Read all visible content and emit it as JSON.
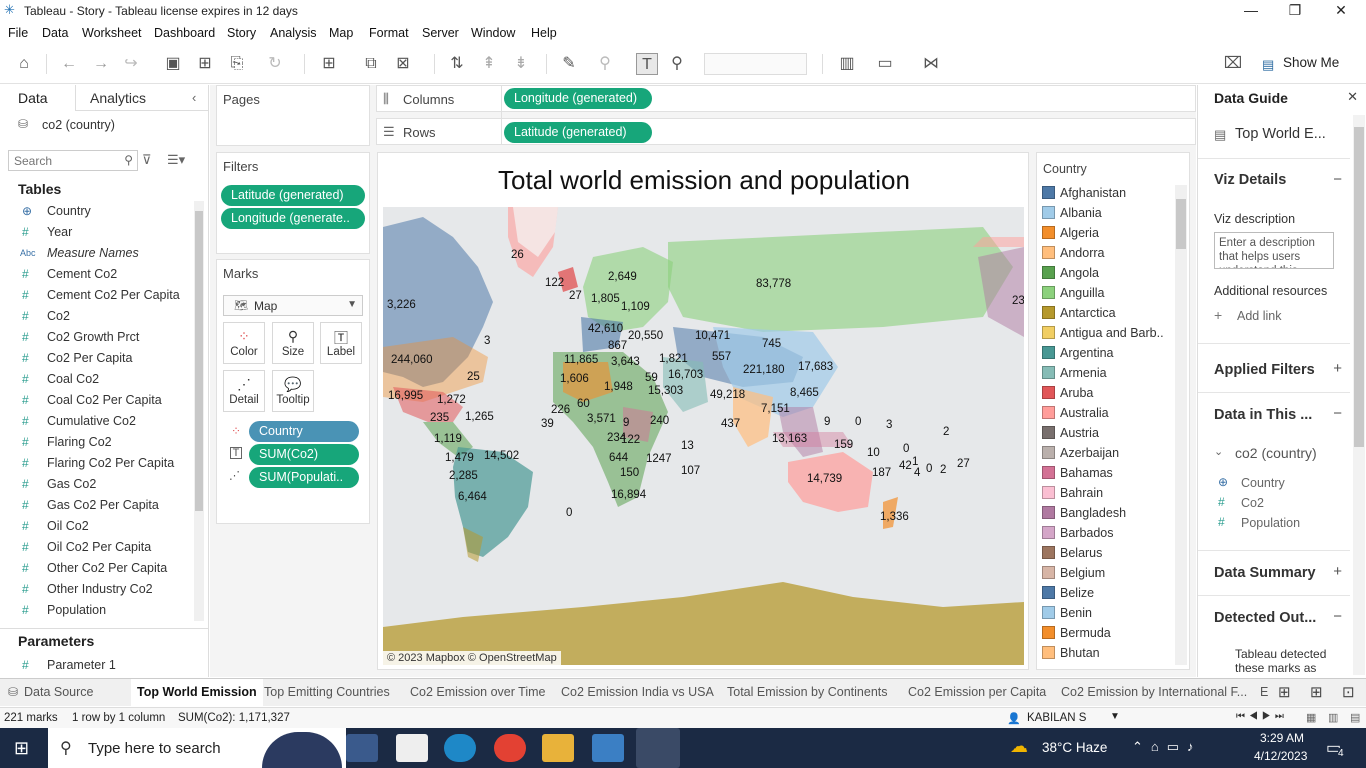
{
  "window": {
    "title": "Tableau - Story - Tableau license expires in 12 days"
  },
  "menu": [
    "File",
    "Data",
    "Worksheet",
    "Dashboard",
    "Story",
    "Analysis",
    "Map",
    "Format",
    "Server",
    "Window",
    "Help"
  ],
  "toolbar": {
    "show_me": "Show Me"
  },
  "left_panel": {
    "tab_data": "Data",
    "tab_analytics": "Analytics",
    "datasource": "co2 (country)",
    "search_placeholder": "Search",
    "tables_heading": "Tables",
    "fields": [
      {
        "icon": "⊕",
        "label": "Country"
      },
      {
        "icon": "#",
        "label": "Year"
      },
      {
        "icon": "Abc",
        "label": "Measure Names"
      },
      {
        "icon": "#",
        "label": "Cement Co2"
      },
      {
        "icon": "#",
        "label": "Cement Co2 Per Capita"
      },
      {
        "icon": "#",
        "label": "Co2"
      },
      {
        "icon": "#",
        "label": "Co2 Growth Prct"
      },
      {
        "icon": "#",
        "label": "Co2 Per Capita"
      },
      {
        "icon": "#",
        "label": "Coal Co2"
      },
      {
        "icon": "#",
        "label": "Coal Co2 Per Capita"
      },
      {
        "icon": "#",
        "label": "Cumulative Co2"
      },
      {
        "icon": "#",
        "label": "Flaring Co2"
      },
      {
        "icon": "#",
        "label": "Flaring Co2 Per Capita"
      },
      {
        "icon": "#",
        "label": "Gas Co2"
      },
      {
        "icon": "#",
        "label": "Gas Co2 Per Capita"
      },
      {
        "icon": "#",
        "label": "Oil Co2"
      },
      {
        "icon": "#",
        "label": "Oil Co2 Per Capita"
      },
      {
        "icon": "#",
        "label": "Other Co2 Per Capita"
      },
      {
        "icon": "#",
        "label": "Other Industry Co2"
      },
      {
        "icon": "#",
        "label": "Population"
      }
    ],
    "parameters_heading": "Parameters",
    "parameters": [
      "Parameter 1"
    ]
  },
  "shelves": {
    "pages": "Pages",
    "columns_label": "Columns",
    "rows_label": "Rows",
    "columns_pill": "Longitude (generated)",
    "rows_pill": "Latitude (generated)",
    "filters_label": "Filters",
    "filters": [
      "Latitude (generated)",
      "Longitude (generate.."
    ],
    "marks_label": "Marks",
    "mark_type": "Map",
    "mark_buttons": [
      "Color",
      "Size",
      "Label",
      "Detail",
      "Tooltip"
    ],
    "mark_pills": [
      "Country",
      "SUM(Co2)",
      "SUM(Populati.."
    ]
  },
  "viz": {
    "title": "Total world emission and population",
    "attribution": "© 2023 Mapbox © OpenStreetMap",
    "labels": [
      "26",
      "122",
      "2,649",
      "27",
      "1,805",
      "1,109",
      "83,778",
      "3,226",
      "42,610",
      "20,550",
      "10,471",
      "867",
      "745",
      "3",
      "244,060",
      "11,865",
      "3,643",
      "1,821",
      "557",
      "221,180",
      "17,683",
      "25",
      "59",
      "16,703",
      "1,606",
      "1,948",
      "15,303",
      "49,218",
      "8,465",
      "16,995",
      "1,272",
      "60",
      "226",
      "7,151",
      "1,265",
      "235",
      "3,571",
      "9",
      "240",
      "437",
      "9",
      "0",
      "3",
      "39",
      "234",
      "122",
      "1,119",
      "13,163",
      "159",
      "2",
      "13",
      "10",
      "0",
      "1",
      "1,479",
      "14,502",
      "644",
      "1247",
      "107",
      "187",
      "42",
      "4",
      "0",
      "2",
      "27",
      "2,285",
      "150",
      "14,739",
      "6,464",
      "16,894",
      "0",
      "1,336",
      "23"
    ]
  },
  "legend": {
    "title": "Country",
    "items": [
      {
        "name": "Afghanistan",
        "color": "#4e79a7"
      },
      {
        "name": "Albania",
        "color": "#a0cbe8"
      },
      {
        "name": "Algeria",
        "color": "#f28e2b"
      },
      {
        "name": "Andorra",
        "color": "#ffbe7d"
      },
      {
        "name": "Angola",
        "color": "#59a14f"
      },
      {
        "name": "Anguilla",
        "color": "#8cd17d"
      },
      {
        "name": "Antarctica",
        "color": "#b6992d"
      },
      {
        "name": "Antigua and Barb..",
        "color": "#f1ce63"
      },
      {
        "name": "Argentina",
        "color": "#499894"
      },
      {
        "name": "Armenia",
        "color": "#86bcb6"
      },
      {
        "name": "Aruba",
        "color": "#e15759"
      },
      {
        "name": "Australia",
        "color": "#ff9d9a"
      },
      {
        "name": "Austria",
        "color": "#79706e"
      },
      {
        "name": "Azerbaijan",
        "color": "#bab0ac"
      },
      {
        "name": "Bahamas",
        "color": "#d37295"
      },
      {
        "name": "Bahrain",
        "color": "#fabfd2"
      },
      {
        "name": "Bangladesh",
        "color": "#b07aa1"
      },
      {
        "name": "Barbados",
        "color": "#d4a6c8"
      },
      {
        "name": "Belarus",
        "color": "#9d7660"
      },
      {
        "name": "Belgium",
        "color": "#d7b5a6"
      },
      {
        "name": "Belize",
        "color": "#4e79a7"
      },
      {
        "name": "Benin",
        "color": "#a0cbe8"
      },
      {
        "name": "Bermuda",
        "color": "#f28e2b"
      },
      {
        "name": "Bhutan",
        "color": "#ffbe7d"
      }
    ]
  },
  "data_guide": {
    "title": "Data Guide",
    "sheet_name": "Top World E...",
    "viz_details": "Viz Details",
    "viz_description_label": "Viz description",
    "viz_description_placeholder": "Enter a description that helps users understand this",
    "additional_resources": "Additional resources",
    "add_link": "Add link",
    "applied_filters": "Applied Filters",
    "data_in_this": "Data in This ...",
    "datasource": "co2 (country)",
    "fields": [
      {
        "icon": "⊕",
        "label": "Country"
      },
      {
        "icon": "#",
        "label": "Co2"
      },
      {
        "icon": "#",
        "label": "Population"
      }
    ],
    "data_summary": "Data Summary",
    "detected_outliers": "Detected Out...",
    "outlier_text": "Tableau detected these marks as"
  },
  "sheet_tabs": {
    "data_source": "Data Source",
    "tabs": [
      "Top World Emission",
      "Top Emitting Countries",
      "Co2 Emission over Time",
      "Co2 Emission India vs USA",
      "Total Emission by Continents",
      "Co2 Emission per Capita",
      "Co2 Emission by International F..."
    ],
    "overflow": "E"
  },
  "status_bar": {
    "marks": "221 marks",
    "rows_cols": "1 row by 1 column",
    "sum": "SUM(Co2): 1,171,327",
    "user": "KABILAN S"
  },
  "taskbar": {
    "search_placeholder": "Type here to search",
    "weather": "38°C  Haze",
    "time": "3:29 AM",
    "date": "4/12/2023",
    "notifications": "4"
  }
}
